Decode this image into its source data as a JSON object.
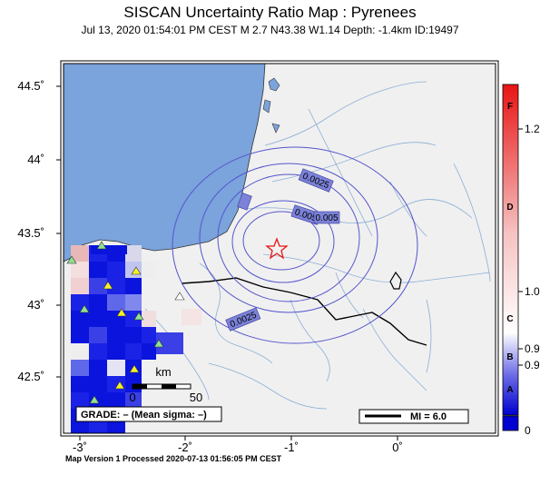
{
  "title": "SISCAN Uncertainty Ratio Map : Pyrenees",
  "subtitle": "Jul 13, 2020 01:54:01 PM CEST   M 2.7   N43.38 W1.14   Depth: -1.4km   ID:19497",
  "footer": "Map Version 1 Processed 2020-07-13 01:56:05 PM CEST",
  "map": {
    "lat_ticks": [
      "44.5˚",
      "44˚",
      "43.5˚",
      "43˚",
      "42.5˚"
    ],
    "lon_ticks": [
      "-3˚",
      "-2˚",
      "-1˚",
      "0˚"
    ],
    "contour_labels": [
      "0.0025",
      "0.005",
      "0.005",
      "0.0025",
      "0.0025"
    ],
    "scale_bar": {
      "unit": "km",
      "start": "0",
      "end": "50"
    },
    "grade_box": "GRADE: – (Mean sigma: –)",
    "mi_legend": "MI = 6.0",
    "epicenter_symbol": "star"
  },
  "colorbar": {
    "letters": [
      "F",
      "D",
      "C",
      "B",
      "A"
    ],
    "values": [
      "1.2",
      "1.0",
      "0.9",
      "0.9",
      "0"
    ]
  },
  "colors": {
    "ocean": "#7ba3dc",
    "land": "#f0f0f0",
    "contour": "#5555cc",
    "border": "#000000",
    "epicenter": "#ee2222",
    "station": "#8fe090"
  }
}
